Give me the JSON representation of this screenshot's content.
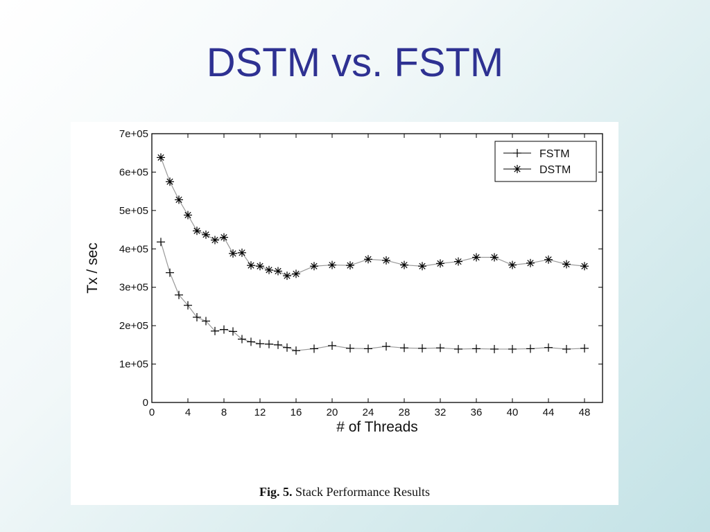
{
  "slide": {
    "title": "DSTM vs. FSTM"
  },
  "caption": {
    "fig": "Fig. 5.",
    "text": "Stack Performance Results"
  },
  "chart_data": {
    "type": "line",
    "xlabel": "# of Threads",
    "ylabel": "Tx / sec",
    "xlim": [
      0,
      50
    ],
    "ylim": [
      0,
      700000
    ],
    "xticks": [
      0,
      4,
      8,
      12,
      16,
      20,
      24,
      28,
      32,
      36,
      40,
      44,
      48
    ],
    "yticks": [
      0,
      100000,
      200000,
      300000,
      400000,
      500000,
      600000,
      700000
    ],
    "ytick_labels": [
      "0",
      "1e+05",
      "2e+05",
      "3e+05",
      "4e+05",
      "5e+05",
      "6e+05",
      "7e+05"
    ],
    "grid": false,
    "legend_position": "top-right",
    "line_color": "#999999",
    "series": [
      {
        "name": "FSTM",
        "marker": "plus",
        "x": [
          1,
          2,
          3,
          4,
          5,
          6,
          7,
          8,
          9,
          10,
          11,
          12,
          13,
          14,
          15,
          16,
          18,
          20,
          22,
          24,
          26,
          28,
          30,
          32,
          34,
          36,
          38,
          40,
          42,
          44,
          46,
          48
        ],
        "y": [
          418000,
          338000,
          280000,
          253000,
          222000,
          212000,
          186000,
          190000,
          185000,
          165000,
          158000,
          153000,
          152000,
          150000,
          143000,
          135000,
          140000,
          148000,
          141000,
          140000,
          146000,
          142000,
          141000,
          142000,
          139000,
          140000,
          139000,
          139000,
          140000,
          143000,
          139000,
          141000
        ]
      },
      {
        "name": "DSTM",
        "marker": "star",
        "x": [
          1,
          2,
          3,
          4,
          5,
          6,
          7,
          8,
          9,
          10,
          11,
          12,
          13,
          14,
          15,
          16,
          18,
          20,
          22,
          24,
          26,
          28,
          30,
          32,
          34,
          36,
          38,
          40,
          42,
          44,
          46,
          48
        ],
        "y": [
          638000,
          575000,
          528000,
          488000,
          447000,
          437000,
          423000,
          430000,
          388000,
          390000,
          357000,
          355000,
          345000,
          342000,
          330000,
          335000,
          355000,
          358000,
          357000,
          373000,
          370000,
          358000,
          355000,
          362000,
          367000,
          378000,
          378000,
          358000,
          363000,
          372000,
          360000,
          355000
        ]
      }
    ]
  }
}
